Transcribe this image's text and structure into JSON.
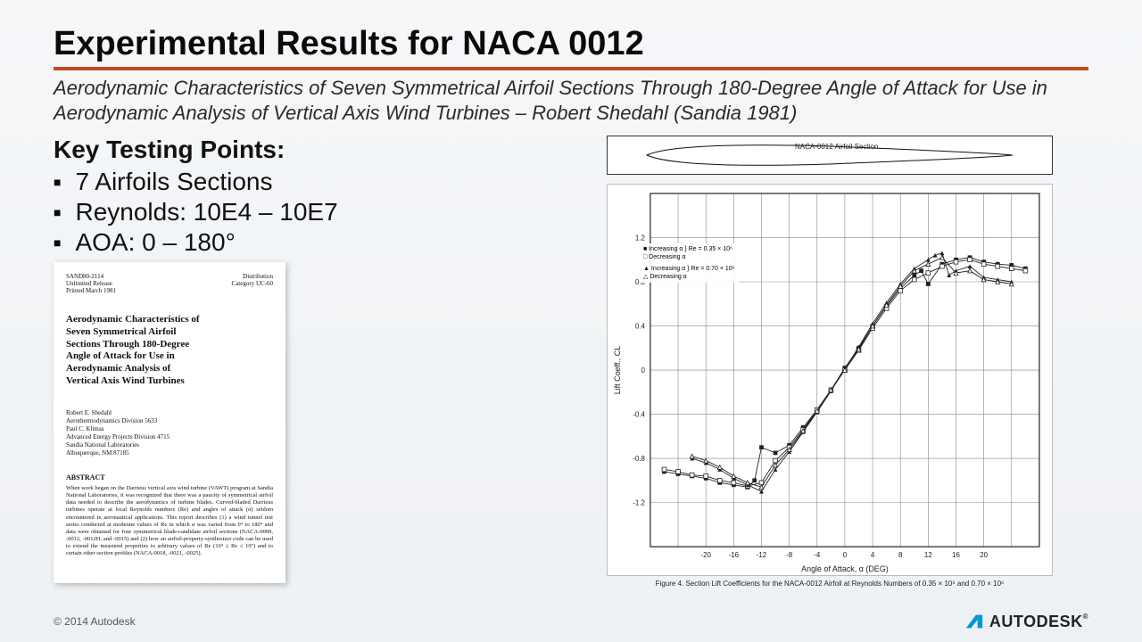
{
  "title": "Experimental Results for NACA 0012",
  "subtitle": "Aerodynamic Characteristics of Seven Symmetrical Airfoil Sections Through 180-Degree Angle of Attack for Use in Aerodynamic Analysis of Vertical Axis Wind Turbines – Robert Shedahl (Sandia 1981)",
  "accent_color": "#c64a1f",
  "key_points": {
    "heading": "Key Testing Points:",
    "items": [
      "7 Airfoils Sections",
      "Reynolds: 10E4 – 10E7",
      "AOA: 0 – 180°"
    ]
  },
  "paper_thumb": {
    "top_left": "SAND80-2114\nUnlimited Release\nPrinted March 1981",
    "top_right": "Distribution\nCategory UC-60",
    "title": "Aerodynamic Characteristics of Seven Symmetrical Airfoil Sections Through 180-Degree Angle of Attack for Use in Aerodynamic Analysis of Vertical Axis Wind Turbines",
    "authors": "Robert E. Shedahl\nAerothermodynamics Division 5633\nPaul C. Klimas\nAdvanced Energy Projects Division 4715\nSandia National Laboratories\nAlbuquerque, NM 87185",
    "abstract_h": "ABSTRACT",
    "abstract": "When work began on the Darrieus vertical axis wind turbine (VAWT) program at Sandia National Laboratories, it was recognized that there was a paucity of symmetrical airfoil data needed to describe the aerodynamics of turbine blades. Curved-bladed Darrieus turbines operate at local Reynolds numbers (Re) and angles of attack (α) seldom encountered in aeronautical applications. This report describes (1) a wind tunnel test series conducted at moderate values of Re in which α was varied from 0° to 180° and data were obtained for four symmetrical blade-candidate airfoil sections (NACA-0009, -0012, -0012H, and -0015) and (2) how an airfoil-property-synthesizer code can be used to extend the measured properties to arbitrary values of Re (10⁴ ≤ Re ≤ 10⁷) and to certain other section profiles (NACA-0018, -0021, -0025)."
  },
  "airfoil_label": "NACA-0012 Airfoil Section",
  "chart": {
    "type": "line",
    "xlabel": "Angle of Attack, α (DEG)",
    "ylabel": "Lift Coeff., CL",
    "caption": "Figure 4. Section Lift Coefficients for the NACA-0012 Airfoil at Reynolds Numbers of 0.35 × 10⁶ and 0.70 × 10⁶",
    "xlim": [
      -28,
      28
    ],
    "ylim": [
      -1.6,
      1.6
    ],
    "xticks": [
      -28,
      -24,
      -20,
      -16,
      -12,
      -8,
      -4,
      0,
      4,
      8,
      12,
      16,
      20,
      24,
      28
    ],
    "xtick_labels_shown": [
      -20,
      -16,
      -12,
      -8,
      -4,
      0,
      4,
      8,
      12,
      16,
      20
    ],
    "yticks": [
      -1.6,
      -1.2,
      -0.8,
      -0.4,
      0,
      0.4,
      0.8,
      1.2,
      1.6
    ],
    "ytick_labels_shown": [
      -1.2,
      -0.8,
      -0.4,
      0,
      0.4,
      0.8,
      1.2
    ],
    "grid_color": "#888",
    "background_color": "#ffffff",
    "axis_fontsize": 8,
    "label_fontsize": 9,
    "series": [
      {
        "name": "Increasing α Re=0.35×10⁶",
        "marker": "square-filled",
        "color": "#222",
        "data": [
          [
            -26,
            -0.92
          ],
          [
            -24,
            -0.94
          ],
          [
            -22,
            -0.96
          ],
          [
            -20,
            -0.98
          ],
          [
            -18,
            -1.02
          ],
          [
            -16,
            -1.04
          ],
          [
            -14,
            -1.06
          ],
          [
            -13,
            -1.0
          ],
          [
            -12,
            -0.7
          ],
          [
            -10,
            -0.75
          ],
          [
            -8,
            -0.68
          ],
          [
            -6,
            -0.52
          ],
          [
            -4,
            -0.36
          ],
          [
            -2,
            -0.18
          ],
          [
            0,
            0.02
          ],
          [
            2,
            0.2
          ],
          [
            4,
            0.4
          ],
          [
            6,
            0.58
          ],
          [
            8,
            0.74
          ],
          [
            10,
            0.86
          ],
          [
            11,
            0.9
          ],
          [
            12,
            0.78
          ],
          [
            14,
            0.96
          ],
          [
            16,
            1.0
          ],
          [
            18,
            1.02
          ],
          [
            20,
            0.98
          ],
          [
            22,
            0.96
          ],
          [
            24,
            0.95
          ],
          [
            26,
            0.92
          ]
        ]
      },
      {
        "name": "Decreasing α Re=0.35×10⁶",
        "marker": "square-open",
        "color": "#222",
        "data": [
          [
            -26,
            -0.9
          ],
          [
            -24,
            -0.92
          ],
          [
            -22,
            -0.95
          ],
          [
            -20,
            -0.96
          ],
          [
            -18,
            -1.0
          ],
          [
            -16,
            -1.02
          ],
          [
            -14,
            -1.05
          ],
          [
            -12,
            -1.02
          ],
          [
            -10,
            -0.82
          ],
          [
            -8,
            -0.7
          ],
          [
            -6,
            -0.54
          ],
          [
            -4,
            -0.36
          ],
          [
            -2,
            -0.18
          ],
          [
            0,
            0.0
          ],
          [
            2,
            0.18
          ],
          [
            4,
            0.38
          ],
          [
            6,
            0.56
          ],
          [
            8,
            0.72
          ],
          [
            10,
            0.82
          ],
          [
            12,
            0.88
          ],
          [
            14,
            0.94
          ],
          [
            16,
            0.98
          ],
          [
            18,
            1.0
          ],
          [
            20,
            0.96
          ],
          [
            22,
            0.94
          ],
          [
            24,
            0.92
          ],
          [
            26,
            0.9
          ]
        ]
      },
      {
        "name": "Increasing α Re=0.70×10⁶",
        "marker": "triangle-filled",
        "color": "#222",
        "data": [
          [
            -22,
            -0.8
          ],
          [
            -20,
            -0.84
          ],
          [
            -18,
            -0.9
          ],
          [
            -16,
            -0.98
          ],
          [
            -14,
            -1.04
          ],
          [
            -12,
            -1.1
          ],
          [
            -10,
            -0.9
          ],
          [
            -8,
            -0.74
          ],
          [
            -6,
            -0.56
          ],
          [
            -4,
            -0.38
          ],
          [
            -2,
            -0.19
          ],
          [
            0,
            0.01
          ],
          [
            2,
            0.21
          ],
          [
            4,
            0.42
          ],
          [
            6,
            0.61
          ],
          [
            8,
            0.78
          ],
          [
            10,
            0.92
          ],
          [
            12,
            1.0
          ],
          [
            13,
            1.04
          ],
          [
            14,
            1.06
          ],
          [
            15,
            0.86
          ],
          [
            16,
            0.9
          ],
          [
            18,
            0.94
          ],
          [
            20,
            0.84
          ],
          [
            22,
            0.82
          ],
          [
            24,
            0.8
          ]
        ]
      },
      {
        "name": "Decreasing α Re=0.70×10⁶",
        "marker": "triangle-open",
        "color": "#222",
        "data": [
          [
            -22,
            -0.78
          ],
          [
            -20,
            -0.82
          ],
          [
            -18,
            -0.88
          ],
          [
            -16,
            -0.96
          ],
          [
            -14,
            -1.02
          ],
          [
            -12,
            -1.06
          ],
          [
            -10,
            -0.86
          ],
          [
            -8,
            -0.72
          ],
          [
            -6,
            -0.55
          ],
          [
            -4,
            -0.37
          ],
          [
            -2,
            -0.18
          ],
          [
            0,
            0.0
          ],
          [
            2,
            0.19
          ],
          [
            4,
            0.4
          ],
          [
            6,
            0.59
          ],
          [
            8,
            0.76
          ],
          [
            10,
            0.9
          ],
          [
            12,
            0.96
          ],
          [
            14,
            1.02
          ],
          [
            16,
            0.88
          ],
          [
            18,
            0.9
          ],
          [
            20,
            0.82
          ],
          [
            22,
            0.8
          ],
          [
            24,
            0.78
          ]
        ]
      }
    ],
    "legend": [
      "■ Increasing α } Re = 0.35 × 10⁶",
      "□ Decreasing α",
      "▲ Increasing α } Re = 0.70 × 10⁶",
      "△ Decreasing α"
    ]
  },
  "footer": "© 2014 Autodesk",
  "logo_text": "AUTODESK"
}
